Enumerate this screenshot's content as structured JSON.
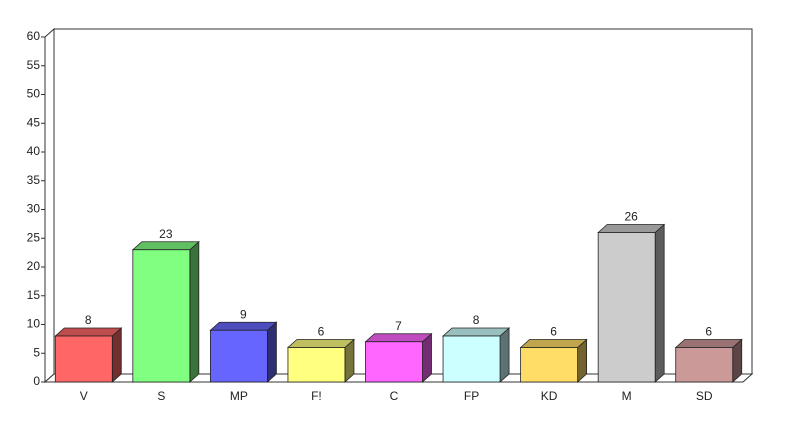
{
  "chart_data": {
    "type": "bar3d",
    "categories": [
      "V",
      "S",
      "MP",
      "F!",
      "C",
      "FP",
      "KD",
      "M",
      "SD"
    ],
    "values": [
      8,
      23,
      9,
      6,
      7,
      8,
      6,
      26,
      6
    ],
    "colors": [
      "#ff6666",
      "#80ff80",
      "#6666ff",
      "#ffff80",
      "#ff66ff",
      "#ccffff",
      "#ffdd66",
      "#cccccc",
      "#cc9999"
    ],
    "ylim": [
      0,
      60
    ],
    "yticks": [
      0,
      5,
      10,
      15,
      20,
      25,
      30,
      35,
      40,
      45,
      50,
      55,
      60
    ],
    "grid": false
  }
}
